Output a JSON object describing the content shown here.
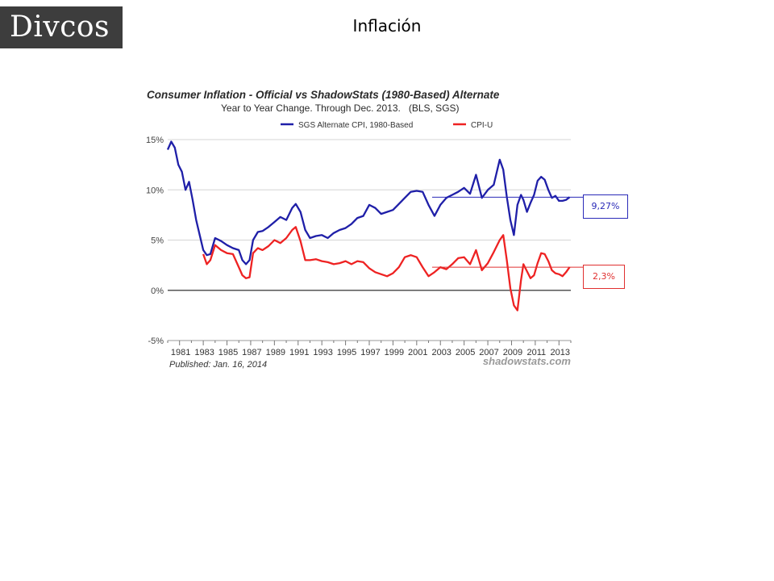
{
  "slide": {
    "logo_text": "Divcos",
    "title": "Inflación",
    "colors": {
      "logo_bg": "#3d3d3d",
      "sgs": "#1f1fa8",
      "cpi": "#ee2222"
    }
  },
  "annotations": [
    {
      "label": "9,27%",
      "value": 9.27,
      "color": "#2a2ab8"
    },
    {
      "label": "2,3%",
      "value": 2.3,
      "color": "#e03030"
    }
  ],
  "chart_data": {
    "type": "line",
    "title": "Consumer Inflation - Official vs ShadowStats (1980-Based) Alternate",
    "subtitle": "Year to Year Change. Through Dec. 2013.   (BLS, SGS)",
    "footnote": "Published: Jan. 16, 2014",
    "source": "shadowstats.com",
    "xlabel": "",
    "ylabel": "",
    "xlim": [
      1980,
      2014
    ],
    "ylim": [
      -5,
      15
    ],
    "grid": true,
    "legend": "top",
    "y_ticks": [
      15,
      10,
      5,
      0,
      -5
    ],
    "y_tick_labels": [
      "15%",
      "10%",
      "5%",
      "0%",
      "-5%"
    ],
    "x_tick_labels": [
      "1981",
      "1983",
      "1985",
      "1987",
      "1989",
      "1991",
      "1993",
      "1995",
      "1997",
      "1999",
      "2001",
      "2003",
      "2005",
      "2007",
      "2009",
      "2011",
      "2013"
    ],
    "series": [
      {
        "name": "SGS Alternate CPI, 1980-Based",
        "color": "#1f1fa8",
        "x": [
          1980.0,
          1980.3,
          1980.6,
          1980.9,
          1981.2,
          1981.5,
          1981.8,
          1982.1,
          1982.4,
          1982.7,
          1983.0,
          1983.3,
          1983.6,
          1984.0,
          1984.5,
          1985.0,
          1985.5,
          1986.0,
          1986.3,
          1986.6,
          1986.9,
          1987.2,
          1987.6,
          1988.0,
          1988.5,
          1989.0,
          1989.5,
          1990.0,
          1990.5,
          1990.8,
          1991.2,
          1991.6,
          1992.0,
          1992.5,
          1993.0,
          1993.5,
          1994.0,
          1994.5,
          1995.0,
          1995.5,
          1996.0,
          1996.5,
          1997.0,
          1997.5,
          1998.0,
          1998.5,
          1999.0,
          1999.5,
          2000.0,
          2000.5,
          2001.0,
          2001.5,
          2002.0,
          2002.5,
          2003.0,
          2003.5,
          2004.0,
          2004.5,
          2005.0,
          2005.5,
          2006.0,
          2006.5,
          2007.0,
          2007.5,
          2008.0,
          2008.3,
          2008.6,
          2008.9,
          2009.2,
          2009.5,
          2009.8,
          2010.0,
          2010.3,
          2010.6,
          2010.9,
          2011.2,
          2011.5,
          2011.8,
          2012.1,
          2012.4,
          2012.7,
          2013.0,
          2013.3,
          2013.6,
          2013.9
        ],
        "values": [
          14.0,
          14.8,
          14.2,
          12.5,
          11.8,
          10.0,
          10.8,
          9.0,
          7.0,
          5.5,
          4.0,
          3.5,
          3.6,
          5.2,
          4.9,
          4.5,
          4.2,
          4.0,
          3.0,
          2.6,
          3.0,
          5.0,
          5.8,
          5.9,
          6.3,
          6.8,
          7.3,
          7.0,
          8.2,
          8.6,
          7.8,
          6.0,
          5.2,
          5.4,
          5.5,
          5.2,
          5.7,
          6.0,
          6.2,
          6.6,
          7.2,
          7.4,
          8.5,
          8.2,
          7.6,
          7.8,
          8.0,
          8.6,
          9.2,
          9.8,
          9.9,
          9.8,
          8.5,
          7.4,
          8.5,
          9.2,
          9.5,
          9.8,
          10.2,
          9.6,
          11.5,
          9.2,
          10.0,
          10.5,
          13.0,
          12.0,
          9.3,
          7.0,
          5.5,
          8.5,
          9.5,
          9.0,
          7.8,
          8.7,
          9.5,
          10.9,
          11.3,
          11.0,
          10.0,
          9.2,
          9.4,
          8.9,
          8.9,
          9.0,
          9.27
        ]
      },
      {
        "name": "CPI-U",
        "color": "#ee2222",
        "x": [
          1983.0,
          1983.3,
          1983.6,
          1984.0,
          1984.5,
          1985.0,
          1985.5,
          1986.0,
          1986.3,
          1986.6,
          1986.9,
          1987.2,
          1987.6,
          1988.0,
          1988.5,
          1989.0,
          1989.5,
          1990.0,
          1990.5,
          1990.8,
          1991.2,
          1991.6,
          1992.0,
          1992.5,
          1993.0,
          1993.5,
          1994.0,
          1994.5,
          1995.0,
          1995.5,
          1996.0,
          1996.5,
          1997.0,
          1997.5,
          1998.0,
          1998.5,
          1999.0,
          1999.5,
          2000.0,
          2000.5,
          2001.0,
          2001.5,
          2002.0,
          2002.5,
          2003.0,
          2003.5,
          2004.0,
          2004.5,
          2005.0,
          2005.5,
          2006.0,
          2006.5,
          2007.0,
          2007.5,
          2008.0,
          2008.3,
          2008.6,
          2008.9,
          2009.2,
          2009.5,
          2009.8,
          2010.0,
          2010.3,
          2010.6,
          2010.9,
          2011.2,
          2011.5,
          2011.8,
          2012.1,
          2012.4,
          2012.7,
          2013.0,
          2013.3,
          2013.6,
          2013.9
        ],
        "values": [
          3.6,
          2.6,
          3.0,
          4.5,
          4.0,
          3.7,
          3.6,
          2.3,
          1.5,
          1.2,
          1.3,
          3.7,
          4.2,
          4.0,
          4.4,
          5.0,
          4.7,
          5.2,
          6.0,
          6.3,
          4.9,
          3.0,
          3.0,
          3.1,
          2.9,
          2.8,
          2.6,
          2.7,
          2.9,
          2.6,
          2.9,
          2.8,
          2.2,
          1.8,
          1.6,
          1.4,
          1.7,
          2.3,
          3.3,
          3.5,
          3.3,
          2.3,
          1.4,
          1.8,
          2.3,
          2.1,
          2.6,
          3.2,
          3.3,
          2.6,
          4.0,
          2.0,
          2.7,
          3.8,
          5.0,
          5.5,
          3.0,
          0.2,
          -1.5,
          -2.0,
          1.0,
          2.6,
          1.9,
          1.2,
          1.5,
          2.7,
          3.7,
          3.6,
          2.9,
          2.0,
          1.7,
          1.6,
          1.4,
          1.8,
          2.3
        ]
      }
    ]
  }
}
